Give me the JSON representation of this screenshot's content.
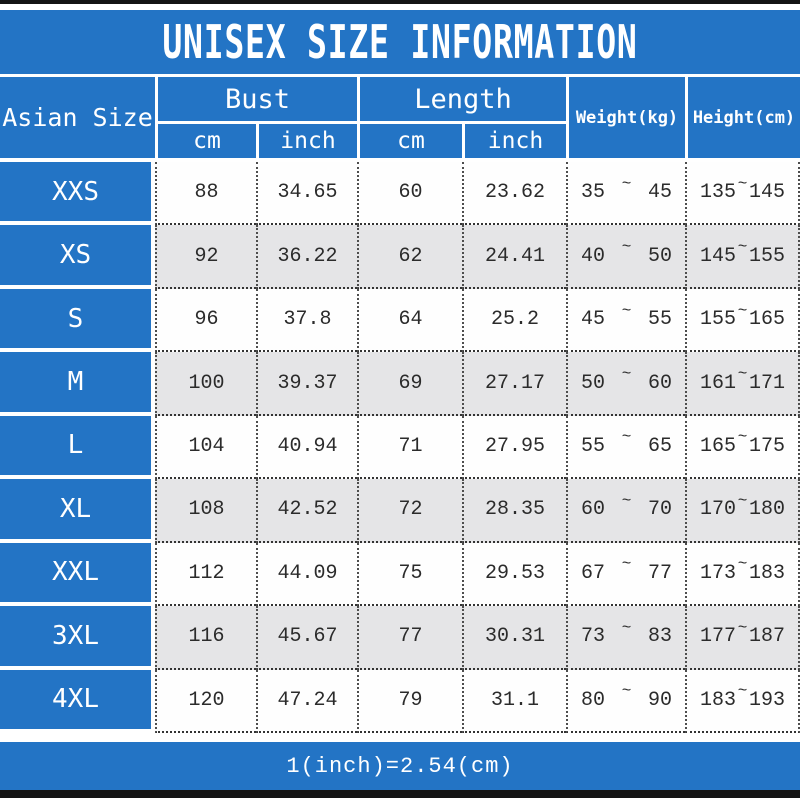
{
  "title": "UNISEX SIZE INFORMATION",
  "header": {
    "asian_size": "Asian Size",
    "bust": "Bust",
    "length": "Length",
    "weight": "Weight(kg)",
    "height": "Height(cm)",
    "cm": "cm",
    "inch": "inch"
  },
  "sym": {
    "tilde": "~"
  },
  "footer": {
    "note": "1(inch)=2.54(cm)"
  },
  "colors": {
    "blue": "#2374c5",
    "row_alt": "#e5e5e7",
    "bar": "#141414",
    "text_dark": "#2b2b2b"
  },
  "rows": [
    {
      "size": "XXS",
      "bust_cm": "88",
      "bust_inch": "34.65",
      "length_cm": "60",
      "length_inch": "23.62",
      "weight_min": "35",
      "weight_max": "45",
      "height_min": "135",
      "height_max": "145"
    },
    {
      "size": "XS",
      "bust_cm": "92",
      "bust_inch": "36.22",
      "length_cm": "62",
      "length_inch": "24.41",
      "weight_min": "40",
      "weight_max": "50",
      "height_min": "145",
      "height_max": "155"
    },
    {
      "size": "S",
      "bust_cm": "96",
      "bust_inch": "37.8",
      "length_cm": "64",
      "length_inch": "25.2",
      "weight_min": "45",
      "weight_max": "55",
      "height_min": "155",
      "height_max": "165"
    },
    {
      "size": "M",
      "bust_cm": "100",
      "bust_inch": "39.37",
      "length_cm": "69",
      "length_inch": "27.17",
      "weight_min": "50",
      "weight_max": "60",
      "height_min": "161",
      "height_max": "171"
    },
    {
      "size": "L",
      "bust_cm": "104",
      "bust_inch": "40.94",
      "length_cm": "71",
      "length_inch": "27.95",
      "weight_min": "55",
      "weight_max": "65",
      "height_min": "165",
      "height_max": "175"
    },
    {
      "size": "XL",
      "bust_cm": "108",
      "bust_inch": "42.52",
      "length_cm": "72",
      "length_inch": "28.35",
      "weight_min": "60",
      "weight_max": "70",
      "height_min": "170",
      "height_max": "180"
    },
    {
      "size": "XXL",
      "bust_cm": "112",
      "bust_inch": "44.09",
      "length_cm": "75",
      "length_inch": "29.53",
      "weight_min": "67",
      "weight_max": "77",
      "height_min": "173",
      "height_max": "183"
    },
    {
      "size": "3XL",
      "bust_cm": "116",
      "bust_inch": "45.67",
      "length_cm": "77",
      "length_inch": "30.31",
      "weight_min": "73",
      "weight_max": "83",
      "height_min": "177",
      "height_max": "187"
    },
    {
      "size": "4XL",
      "bust_cm": "120",
      "bust_inch": "47.24",
      "length_cm": "79",
      "length_inch": "31.1",
      "weight_min": "80",
      "weight_max": "90",
      "height_min": "183",
      "height_max": "193"
    }
  ]
}
